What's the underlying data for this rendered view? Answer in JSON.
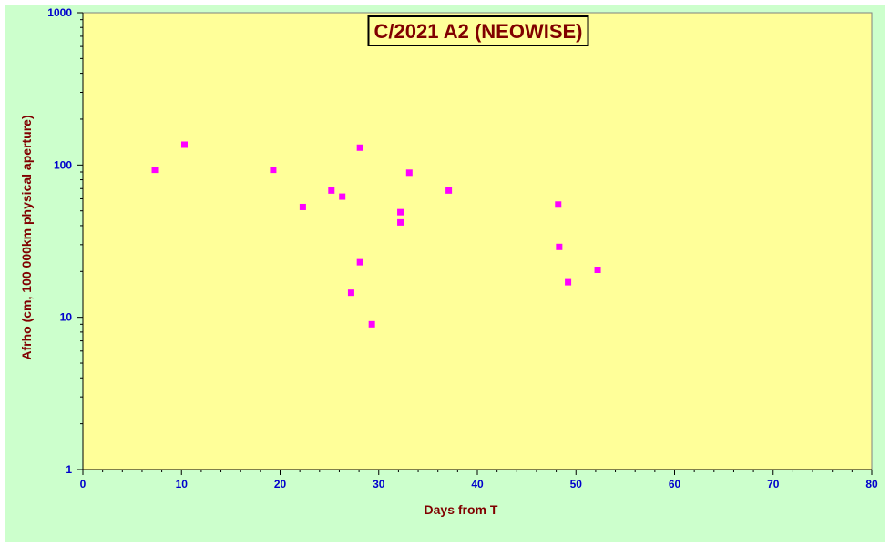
{
  "chart_data": {
    "type": "scatter",
    "title": "C/2021 A2 (NEOWISE)",
    "xlabel": "Days from T",
    "ylabel": "Afrho (cm, 100 000km physical aperture)",
    "xlim": [
      0,
      80
    ],
    "ylim": [
      1,
      1000
    ],
    "yscale": "log",
    "x_ticks": [
      0,
      10,
      20,
      30,
      40,
      50,
      60,
      70,
      80
    ],
    "y_ticks": [
      1,
      10,
      100,
      1000
    ],
    "grid": false,
    "legend": "none",
    "series": [
      {
        "color": "#ff00ff",
        "marker": "square",
        "points": [
          {
            "x": 7.3,
            "y": 93
          },
          {
            "x": 10.3,
            "y": 136
          },
          {
            "x": 19.3,
            "y": 93
          },
          {
            "x": 22.3,
            "y": 53
          },
          {
            "x": 25.2,
            "y": 68
          },
          {
            "x": 26.3,
            "y": 62
          },
          {
            "x": 27.2,
            "y": 14.5
          },
          {
            "x": 28.1,
            "y": 130
          },
          {
            "x": 28.1,
            "y": 23
          },
          {
            "x": 29.3,
            "y": 9.0
          },
          {
            "x": 32.2,
            "y": 49
          },
          {
            "x": 32.2,
            "y": 42
          },
          {
            "x": 33.1,
            "y": 89
          },
          {
            "x": 37.1,
            "y": 68
          },
          {
            "x": 48.2,
            "y": 55
          },
          {
            "x": 48.3,
            "y": 29
          },
          {
            "x": 49.2,
            "y": 17
          },
          {
            "x": 52.2,
            "y": 20.5
          }
        ]
      }
    ]
  },
  "colors": {
    "outer_background": "#ccffcc",
    "plot_background": "#ffff99",
    "tick_labels": "#0000cc",
    "axis_titles": "#800000",
    "markers": "#ff00ff"
  }
}
